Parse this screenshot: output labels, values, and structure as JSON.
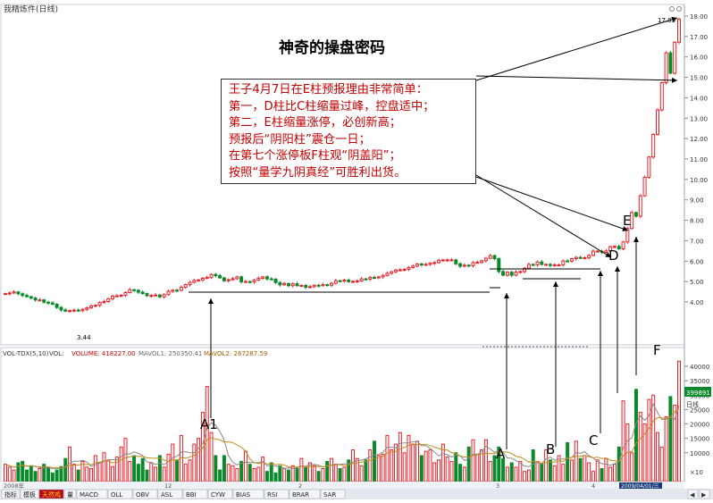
{
  "window": {
    "title": "我精炼件(日线)"
  },
  "main_title": "神奇的操盘密码",
  "annotation": {
    "lines": [
      "王子4月7日在E柱预报理由非常简单：",
      "第一，D柱比C柱缩量过峰，控盘适中；",
      "第二，E柱缩量涨停，必创新高；",
      "预报后“阴阳柱”震仓一日；",
      "在第七个涨停板F柱观“阴盖阳”；",
      "按照“量学九阴真经”可胜利出货。"
    ]
  },
  "labels": {
    "A1": "A1",
    "A": "A",
    "B": "B",
    "C": "C",
    "D": "D",
    "E": "E",
    "F": "F"
  },
  "price_annotations": {
    "high": "17.85",
    "low": "3.44"
  },
  "volume_header": {
    "indicator": "VOL-TDX(5,10)",
    "vol": "VOL: ",
    "volume": "VOLUME: 418227.00",
    "mavol1": "MAVOL1: 250350.41",
    "mavol2": "MAVOL2: 267287.59"
  },
  "volume_right": {
    "current": "399891",
    "unit": "日线"
  },
  "date_axis": {
    "labels": [
      "2008年",
      "12",
      "2",
      "3",
      "4",
      "2009/04/01/三"
    ]
  },
  "toolbar": {
    "items": [
      "指标",
      "模板",
      "天然鸡",
      "量",
      "MACD",
      "OLL",
      "OBV",
      "ASL",
      "BBI",
      "CYW",
      "BIAS",
      "RSI",
      "BRAR",
      "SAR"
    ]
  },
  "colors": {
    "up": "#e8202a",
    "down": "#0a8a2a",
    "price_line": "#000080",
    "accent": "#c00000"
  },
  "chart_data": [
    {
      "type": "candlestick",
      "title": "神奇的操盘密码",
      "yaxis": {
        "ticks": [
          4.0,
          5.0,
          6.0,
          7.0,
          8.0,
          9.0,
          10.0,
          11.0,
          12.0,
          13.0,
          14.0,
          15.0,
          16.0,
          17.0,
          18.0
        ],
        "range": [
          3.2,
          18.2
        ]
      },
      "close": [
        4.41,
        4.44,
        4.49,
        4.4,
        4.32,
        4.26,
        4.19,
        4.1,
        4.1,
        3.99,
        3.95,
        3.89,
        3.73,
        3.61,
        3.55,
        3.58,
        3.6,
        3.57,
        3.64,
        3.71,
        3.8,
        3.84,
        3.97,
        4.02,
        4.16,
        4.29,
        4.3,
        4.33,
        4.46,
        4.6,
        4.57,
        4.48,
        4.41,
        4.31,
        4.32,
        4.34,
        4.25,
        4.36,
        4.52,
        4.58,
        4.57,
        4.72,
        4.85,
        4.96,
        5.05,
        5.08,
        5.16,
        5.2,
        5.35,
        5.29,
        5.18,
        5.04,
        5.09,
        5.14,
        5.23,
        4.99,
        5.0,
        4.98,
        5.07,
        5.16,
        5.23,
        5.13,
        5.12,
        4.95,
        4.84,
        4.9,
        4.8,
        4.89,
        4.8,
        4.81,
        4.72,
        4.75,
        4.82,
        4.8,
        4.85,
        4.82,
        4.91,
        5.04,
        5.03,
        5.07,
        4.99,
        5.01,
        5.03,
        5.13,
        5.12,
        5.2,
        5.18,
        5.23,
        5.3,
        5.4,
        5.48,
        5.56,
        5.57,
        5.6,
        5.68,
        5.76,
        5.86,
        5.82,
        5.84,
        5.9,
        5.93,
        6.04,
        6.06,
        6.06,
        6.06,
        5.87,
        5.75,
        5.8,
        5.78,
        5.93,
        5.94,
        6.02,
        6.14,
        6.27,
        6.12,
        5.49,
        5.31,
        5.46,
        5.31,
        5.46,
        5.49,
        5.65,
        5.84,
        5.82,
        5.96,
        5.84,
        5.84,
        5.79,
        5.81,
        5.82,
        6.01,
        6.0,
        6.12,
        6.18,
        6.16,
        6.17,
        6.28,
        6.49,
        6.49,
        6.43,
        6.5,
        6.71,
        6.72,
        6.6,
        6.94,
        7.6,
        8.38,
        8.2,
        9.2,
        10.1,
        11.1,
        12.2,
        13.4,
        14.74,
        16.2,
        15.2,
        16.72,
        17.85
      ],
      "open": [
        4.41,
        4.41,
        4.44,
        4.49,
        4.4,
        4.32,
        4.26,
        4.19,
        4.1,
        4.1,
        3.99,
        3.95,
        3.89,
        3.73,
        3.61,
        3.55,
        3.58,
        3.6,
        3.57,
        3.64,
        3.71,
        3.8,
        3.84,
        3.97,
        4.02,
        4.16,
        4.29,
        4.3,
        4.33,
        4.46,
        4.6,
        4.57,
        4.48,
        4.41,
        4.31,
        4.32,
        4.34,
        4.25,
        4.36,
        4.52,
        4.58,
        4.57,
        4.72,
        4.85,
        4.96,
        5.05,
        5.08,
        5.16,
        5.2,
        5.35,
        5.29,
        5.18,
        5.04,
        5.09,
        5.14,
        5.23,
        4.99,
        5.0,
        4.98,
        5.07,
        5.16,
        5.23,
        5.13,
        5.12,
        4.95,
        4.84,
        4.9,
        4.8,
        4.89,
        4.8,
        4.81,
        4.72,
        4.75,
        4.82,
        4.8,
        4.85,
        4.82,
        4.91,
        5.04,
        5.03,
        5.07,
        4.99,
        5.01,
        5.03,
        5.13,
        5.12,
        5.2,
        5.18,
        5.23,
        5.3,
        5.4,
        5.48,
        5.56,
        5.57,
        5.6,
        5.68,
        5.76,
        5.86,
        5.82,
        5.84,
        5.9,
        5.93,
        6.04,
        6.06,
        6.06,
        6.06,
        5.87,
        5.75,
        5.8,
        5.78,
        5.93,
        5.94,
        6.02,
        6.14,
        6.27,
        6.12,
        5.49,
        5.31,
        5.46,
        5.31,
        5.46,
        5.49,
        5.65,
        5.84,
        5.82,
        5.96,
        5.84,
        5.84,
        5.79,
        5.81,
        5.82,
        6.01,
        6.0,
        6.12,
        6.18,
        6.16,
        6.17,
        6.28,
        6.49,
        6.49,
        6.43,
        6.5,
        6.71,
        6.72,
        6.6,
        6.94,
        7.6,
        8.38,
        8.2,
        9.2,
        10.1,
        11.1,
        12.2,
        13.4,
        14.74,
        16.2,
        15.2,
        16.72
      ],
      "volume": [
        6000,
        5000,
        4000,
        6500,
        7000,
        4000,
        5500,
        3500,
        4500,
        6000,
        5000,
        3000,
        4000,
        5200,
        8000,
        12000,
        6000,
        4000,
        7000,
        5000,
        4500,
        9000,
        6500,
        10000,
        7500,
        5200,
        8500,
        12000,
        15000,
        7000,
        9000,
        6000,
        8000,
        4000,
        6500,
        5000,
        9000,
        5000,
        9500,
        13000,
        7500,
        16000,
        6000,
        7500,
        13000,
        15000,
        24000,
        33000,
        17000,
        9000,
        4000,
        9000,
        6000,
        5500,
        4500,
        7000,
        10500,
        6000,
        4500,
        5000,
        8500,
        3500,
        6500,
        3000,
        5500,
        4500,
        4000,
        5500,
        4500,
        8000,
        5000,
        6500,
        5500,
        3500,
        4500,
        7000,
        8000,
        6000,
        4500,
        5000,
        7500,
        11000,
        8000,
        5500,
        7500,
        11000,
        14000,
        9000,
        9500,
        16000,
        11000,
        13000,
        17000,
        10000,
        16000,
        13000,
        14000,
        9000,
        10500,
        11000,
        6500,
        7500,
        13000,
        8500,
        7000,
        10000,
        6000,
        5000,
        12000,
        14500,
        9500,
        11000,
        14500,
        7000,
        9000,
        12000,
        8000,
        5000,
        6500,
        5000,
        7000,
        3500,
        4000,
        11000,
        7000,
        6000,
        11000,
        7500,
        5500,
        9000,
        6000,
        13500,
        7500,
        14000,
        8000,
        9000,
        6500,
        3500,
        7500,
        4500,
        8000,
        5000,
        6000,
        12000,
        28000,
        20000,
        10000,
        32000,
        24000,
        20000,
        28500,
        30000,
        17000,
        12000,
        22500,
        29500,
        26500,
        41800
      ]
    },
    {
      "type": "bar",
      "title": "VOL-TDX(5,10)",
      "series": [
        {
          "name": "VOLUME",
          "values": [
            6000,
            5000,
            4000,
            6500,
            7000,
            4000,
            5500,
            3500,
            4500,
            6000,
            5000,
            3000,
            4000,
            5200,
            8000,
            12000,
            6000,
            4000,
            7000,
            5000,
            4500,
            9000,
            6500,
            10000,
            7500,
            5200,
            8500,
            12000,
            15000,
            7000,
            9000,
            6000,
            8000,
            4000,
            6500,
            5000,
            9000,
            5000,
            9500,
            13000,
            7500,
            16000,
            6000,
            7500,
            13000,
            15000,
            24000,
            33000,
            17000,
            9000,
            4000,
            9000,
            6000,
            5500,
            4500,
            7000,
            10500,
            6000,
            4500,
            5000,
            8500,
            3500,
            6500,
            3000,
            5500,
            4500,
            4000,
            5500,
            4500,
            8000,
            5000,
            6500,
            5500,
            3500,
            4500,
            7000,
            8000,
            6000,
            4500,
            5000,
            7500,
            11000,
            8000,
            5500,
            7500,
            11000,
            14000,
            9000,
            9500,
            16000,
            11000,
            13000,
            17000,
            10000,
            16000,
            13000,
            14000,
            9000,
            10500,
            11000,
            6500,
            7500,
            13000,
            8500,
            7000,
            10000,
            6000,
            5000,
            12000,
            14500,
            9500,
            11000,
            14500,
            7000,
            9000,
            12000,
            8000,
            5000,
            6500,
            5000,
            7000,
            3500,
            4000,
            11000,
            7000,
            6000,
            11000,
            7500,
            5500,
            9000,
            6000,
            13500,
            7500,
            14000,
            8000,
            9000,
            6500,
            3500,
            7500,
            4500,
            8000,
            5000,
            6000,
            12000,
            28000,
            20000,
            10000,
            32000,
            24000,
            20000,
            28500,
            30000,
            17000,
            12000,
            22500,
            29500,
            26500,
            41800
          ]
        }
      ],
      "yaxis": {
        "ticks": [
          10000,
          15000,
          20000,
          25000,
          30000,
          35000,
          40000
        ],
        "unit": "×10"
      }
    }
  ]
}
